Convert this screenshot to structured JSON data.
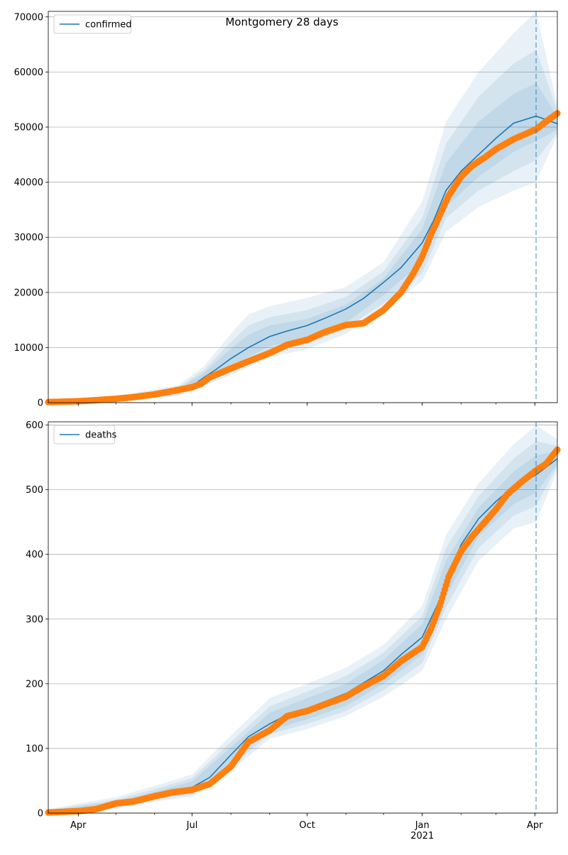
{
  "chart_data": [
    {
      "type": "line",
      "title": "Montgomery 28 days",
      "legend": {
        "placement": "upper-left",
        "entries": [
          "confirmed"
        ]
      },
      "grid": {
        "y": true,
        "x": false
      },
      "xlim": [
        "2020-03-08",
        "2021-04-19"
      ],
      "ylim": [
        0,
        71000
      ],
      "yticks": [
        0,
        10000,
        20000,
        30000,
        40000,
        50000,
        60000,
        70000
      ],
      "ytick_labels": [
        "0",
        "10000",
        "20000",
        "30000",
        "40000",
        "50000",
        "60000",
        "70000"
      ],
      "forecast_start": "2021-04-02",
      "model": {
        "name": "confirmed",
        "color": "#1f77b4",
        "x": [
          "2020-03-08",
          "2020-04-01",
          "2020-05-01",
          "2020-06-01",
          "2020-06-20",
          "2020-07-01",
          "2020-07-10",
          "2020-07-20",
          "2020-08-01",
          "2020-08-15",
          "2020-09-01",
          "2020-09-15",
          "2020-10-01",
          "2020-10-15",
          "2020-11-01",
          "2020-11-15",
          "2020-12-01",
          "2020-12-15",
          "2021-01-01",
          "2021-01-10",
          "2021-01-20",
          "2021-02-01",
          "2021-02-15",
          "2021-03-01",
          "2021-03-15",
          "2021-04-02",
          "2021-04-19"
        ],
        "y": [
          150,
          300,
          700,
          1300,
          2000,
          3000,
          4500,
          6000,
          8000,
          10000,
          12000,
          13000,
          14000,
          15300,
          17000,
          18900,
          21800,
          24500,
          29000,
          33000,
          38500,
          42000,
          45000,
          48000,
          50700,
          52000,
          50600
        ]
      },
      "bands": [
        {
          "color": "#1f77b4",
          "opacity": 0.1,
          "x": [
            "2020-03-08",
            "2020-05-01",
            "2020-06-20",
            "2020-07-10",
            "2020-08-01",
            "2020-08-15",
            "2020-09-01",
            "2020-10-01",
            "2020-11-01",
            "2020-12-01",
            "2021-01-01",
            "2021-01-20",
            "2021-02-15",
            "2021-03-15",
            "2021-04-02",
            "2021-04-19"
          ],
          "upper": [
            400,
            1200,
            3200,
            6500,
            12500,
            16000,
            17500,
            19000,
            21000,
            25500,
            36500,
            51000,
            60000,
            67000,
            71000,
            54000
          ],
          "lower": [
            0,
            400,
            1200,
            3000,
            5000,
            6500,
            8300,
            9700,
            12500,
            17000,
            22000,
            31000,
            35500,
            38500,
            40000,
            48500
          ]
        },
        {
          "color": "#1f77b4",
          "opacity": 0.1,
          "x": [
            "2020-03-08",
            "2020-05-01",
            "2020-06-20",
            "2020-07-10",
            "2020-08-01",
            "2020-08-15",
            "2020-09-01",
            "2020-10-01",
            "2020-11-01",
            "2020-12-01",
            "2021-01-01",
            "2021-01-20",
            "2021-02-15",
            "2021-03-15",
            "2021-04-02",
            "2021-04-19"
          ],
          "upper": [
            320,
            1000,
            2800,
            5800,
            11000,
            14000,
            15500,
            16800,
            19200,
            23800,
            33500,
            47000,
            55500,
            61500,
            64000,
            53000
          ],
          "lower": [
            20,
            500,
            1400,
            3300,
            5800,
            7400,
            9300,
            10800,
            13500,
            18000,
            23500,
            33500,
            38500,
            42000,
            44000,
            49000
          ]
        },
        {
          "color": "#1f77b4",
          "opacity": 0.1,
          "x": [
            "2020-03-08",
            "2020-05-01",
            "2020-06-20",
            "2020-07-10",
            "2020-08-01",
            "2020-08-15",
            "2020-09-01",
            "2020-10-01",
            "2020-11-01",
            "2020-12-01",
            "2021-01-01",
            "2021-01-20",
            "2021-02-15",
            "2021-03-15",
            "2021-04-02",
            "2021-04-19"
          ],
          "upper": [
            260,
            850,
            2500,
            5300,
            9800,
            12300,
            14000,
            15200,
            17800,
            22500,
            31500,
            43500,
            51000,
            56000,
            58000,
            52000
          ],
          "lower": [
            50,
            600,
            1600,
            3700,
            6500,
            8300,
            10200,
            11800,
            14500,
            19500,
            25500,
            35500,
            41000,
            45500,
            47500,
            49500
          ]
        }
      ],
      "observed": {
        "color": "#ff7f0e",
        "x": [
          "2020-03-08",
          "2020-04-01",
          "2020-04-15",
          "2020-05-01",
          "2020-05-15",
          "2020-06-01",
          "2020-06-15",
          "2020-07-01",
          "2020-07-08",
          "2020-07-15",
          "2020-08-01",
          "2020-08-15",
          "2020-09-01",
          "2020-09-15",
          "2020-10-01",
          "2020-10-15",
          "2020-11-01",
          "2020-11-15",
          "2020-12-01",
          "2020-12-15",
          "2020-12-25",
          "2021-01-01",
          "2021-01-08",
          "2021-01-15",
          "2021-01-22",
          "2021-02-01",
          "2021-02-10",
          "2021-02-20",
          "2021-03-01",
          "2021-03-15",
          "2021-04-02",
          "2021-04-10",
          "2021-04-19"
        ],
        "y": [
          100,
          250,
          450,
          700,
          1000,
          1500,
          2100,
          2800,
          3400,
          4600,
          6200,
          7500,
          9000,
          10500,
          11400,
          12800,
          14100,
          14400,
          16800,
          20000,
          23500,
          26500,
          30500,
          34000,
          37500,
          41000,
          43000,
          44500,
          46000,
          47800,
          49600,
          51000,
          52500
        ]
      }
    },
    {
      "type": "line",
      "title": "",
      "legend": {
        "placement": "upper-left",
        "entries": [
          "deaths"
        ]
      },
      "grid": {
        "y": true,
        "x": false
      },
      "xlim": [
        "2020-03-08",
        "2021-04-19"
      ],
      "ylim": [
        0,
        605
      ],
      "yticks": [
        0,
        100,
        200,
        300,
        400,
        500,
        600
      ],
      "ytick_labels": [
        "0",
        "100",
        "200",
        "300",
        "400",
        "500",
        "600"
      ],
      "xticks": [
        "2020-04-01",
        "2020-07-01",
        "2020-10-01",
        "2021-01-01",
        "2021-04-01"
      ],
      "xtick_labels": [
        "Apr",
        "Jul",
        "Oct",
        "Jan\n2021",
        "Apr"
      ],
      "forecast_start": "2021-04-02",
      "model": {
        "name": "deaths",
        "color": "#1f77b4",
        "x": [
          "2020-03-08",
          "2020-04-01",
          "2020-04-20",
          "2020-05-01",
          "2020-06-01",
          "2020-07-01",
          "2020-07-15",
          "2020-08-01",
          "2020-08-15",
          "2020-09-01",
          "2020-09-15",
          "2020-10-01",
          "2020-11-01",
          "2020-12-01",
          "2020-12-15",
          "2021-01-01",
          "2021-01-15",
          "2021-02-01",
          "2021-02-15",
          "2021-03-01",
          "2021-03-15",
          "2021-04-02",
          "2021-04-19"
        ],
        "y": [
          2,
          3,
          8,
          14,
          28,
          40,
          55,
          90,
          118,
          138,
          152,
          162,
          185,
          220,
          245,
          272,
          330,
          415,
          455,
          482,
          505,
          523,
          548
        ]
      },
      "bands": [
        {
          "color": "#1f77b4",
          "opacity": 0.1,
          "x": [
            "2020-03-08",
            "2020-05-01",
            "2020-06-01",
            "2020-07-01",
            "2020-08-01",
            "2020-09-01",
            "2020-10-01",
            "2020-11-01",
            "2020-12-01",
            "2021-01-01",
            "2021-01-20",
            "2021-02-15",
            "2021-03-15",
            "2021-04-02",
            "2021-04-19"
          ],
          "upper": [
            6,
            25,
            42,
            60,
            120,
            178,
            200,
            225,
            260,
            320,
            430,
            510,
            570,
            600,
            578
          ],
          "lower": [
            0,
            6,
            18,
            25,
            65,
            115,
            130,
            150,
            180,
            220,
            300,
            390,
            440,
            450,
            530
          ]
        },
        {
          "color": "#1f77b4",
          "opacity": 0.1,
          "x": [
            "2020-03-08",
            "2020-05-01",
            "2020-06-01",
            "2020-07-01",
            "2020-08-01",
            "2020-09-01",
            "2020-10-01",
            "2020-11-01",
            "2020-12-01",
            "2021-01-01",
            "2021-01-20",
            "2021-02-15",
            "2021-03-15",
            "2021-04-02",
            "2021-04-19"
          ],
          "upper": [
            5,
            21,
            37,
            54,
            110,
            165,
            188,
            212,
            248,
            305,
            410,
            490,
            548,
            575,
            568
          ],
          "lower": [
            1,
            8,
            21,
            29,
            72,
            122,
            138,
            158,
            190,
            232,
            318,
            410,
            460,
            475,
            536
          ]
        },
        {
          "color": "#1f77b4",
          "opacity": 0.1,
          "x": [
            "2020-03-08",
            "2020-05-01",
            "2020-06-01",
            "2020-07-01",
            "2020-08-01",
            "2020-09-01",
            "2020-10-01",
            "2020-11-01",
            "2020-12-01",
            "2021-01-01",
            "2021-01-20",
            "2021-02-15",
            "2021-03-15",
            "2021-04-02",
            "2021-04-19"
          ],
          "upper": [
            4,
            18,
            33,
            49,
            102,
            155,
            178,
            200,
            237,
            292,
            390,
            472,
            528,
            553,
            560
          ],
          "lower": [
            1,
            10,
            24,
            33,
            78,
            128,
            145,
            166,
            200,
            245,
            335,
            428,
            478,
            495,
            540
          ]
        }
      ],
      "observed": {
        "color": "#ff7f0e",
        "x": [
          "2020-03-08",
          "2020-04-01",
          "2020-04-15",
          "2020-05-01",
          "2020-05-15",
          "2020-06-01",
          "2020-06-15",
          "2020-07-01",
          "2020-07-15",
          "2020-08-01",
          "2020-08-15",
          "2020-09-01",
          "2020-09-15",
          "2020-10-01",
          "2020-10-15",
          "2020-11-01",
          "2020-11-15",
          "2020-12-01",
          "2020-12-15",
          "2021-01-01",
          "2021-01-08",
          "2021-01-15",
          "2021-01-22",
          "2021-02-01",
          "2021-02-10",
          "2021-02-20",
          "2021-03-01",
          "2021-03-10",
          "2021-03-20",
          "2021-04-02",
          "2021-04-10",
          "2021-04-19"
        ],
        "y": [
          1,
          3,
          6,
          15,
          18,
          26,
          32,
          36,
          45,
          72,
          110,
          128,
          150,
          158,
          168,
          180,
          196,
          212,
          235,
          257,
          285,
          320,
          365,
          405,
          428,
          450,
          470,
          493,
          510,
          530,
          540,
          562
        ]
      }
    }
  ]
}
